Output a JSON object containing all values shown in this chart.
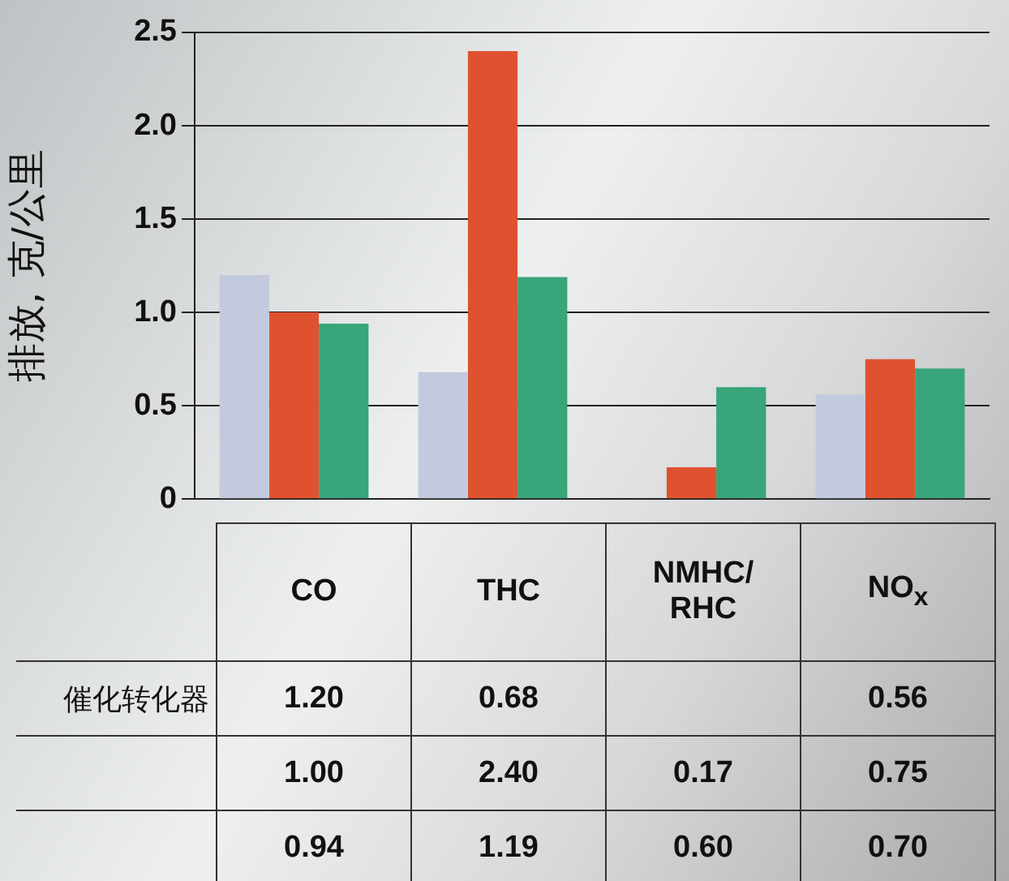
{
  "chart_data": {
    "type": "bar",
    "ylabel": "排放, 克/公里",
    "categories": [
      "CO",
      "THC",
      "NMHC/ RHC",
      "NO$_{x}$"
    ],
    "series": [
      {
        "name": "催化转化器",
        "color": "#c3cade",
        "values": [
          1.2,
          0.68,
          null,
          0.56
        ],
        "value_labels": [
          "1.20",
          "0.68",
          null,
          "0.56"
        ]
      },
      {
        "color": "#df5230",
        "values": [
          1.0,
          2.4,
          0.17,
          0.75
        ],
        "value_labels": [
          "1.00",
          "2.40",
          "0.17",
          "0.75"
        ]
      },
      {
        "color": "#38a57a",
        "values": [
          0.94,
          1.19,
          0.6,
          0.7
        ],
        "value_labels": [
          "0.94",
          "1.19",
          "0.60",
          "0.70"
        ]
      }
    ],
    "ylim": [
      0,
      2.5
    ],
    "yticks": [
      0,
      {
        "value": 0.5,
        "label": "0.5"
      },
      {
        "value": 1,
        "label": "1.0"
      },
      {
        "value": 1.5,
        "label": "1.5"
      },
      {
        "value": 2,
        "label": "2.0"
      },
      {
        "value": 2.5,
        "label": "2.5"
      }
    ],
    "grid": "y",
    "legend": false
  }
}
